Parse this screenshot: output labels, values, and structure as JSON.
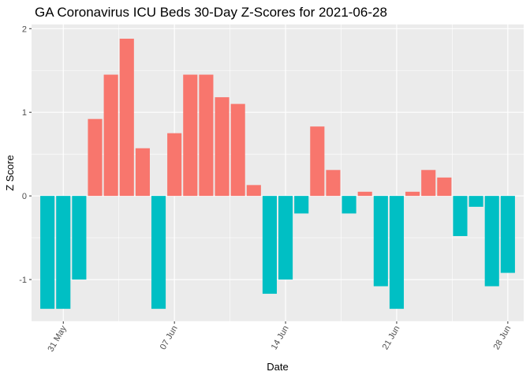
{
  "chart_data": {
    "type": "bar",
    "title": "GA Coronavirus ICU Beds 30-Day Z-Scores for 2021-06-28",
    "xlabel": "Date",
    "ylabel": "Z Score",
    "ylim": [
      -1.5,
      2.05
    ],
    "y_ticks": [
      -1,
      0,
      1,
      2
    ],
    "y_tick_labels": [
      "-1",
      "0",
      "1",
      "2"
    ],
    "x_tick_labels": [
      "31 May",
      "07 Jun",
      "14 Jun",
      "21 Jun",
      "28 Jun"
    ],
    "x_tick_dates": [
      "2021-05-31",
      "2021-06-07",
      "2021-06-14",
      "2021-06-21",
      "2021-06-28"
    ],
    "x_range": [
      "2021-05-29",
      "2021-06-29"
    ],
    "grid": true,
    "legend": "none",
    "colors": {
      "positive": "#F8766D",
      "negative": "#00BFC4",
      "panel": "#EBEBEB",
      "grid": "#FFFFFF"
    },
    "x": [
      "2021-05-30",
      "2021-05-31",
      "2021-06-01",
      "2021-06-02",
      "2021-06-03",
      "2021-06-04",
      "2021-06-05",
      "2021-06-06",
      "2021-06-07",
      "2021-06-08",
      "2021-06-09",
      "2021-06-10",
      "2021-06-11",
      "2021-06-12",
      "2021-06-13",
      "2021-06-14",
      "2021-06-15",
      "2021-06-16",
      "2021-06-17",
      "2021-06-18",
      "2021-06-19",
      "2021-06-20",
      "2021-06-21",
      "2021-06-22",
      "2021-06-23",
      "2021-06-24",
      "2021-06-25",
      "2021-06-26",
      "2021-06-27",
      "2021-06-28"
    ],
    "values": [
      -1.35,
      -1.35,
      -1.0,
      0.92,
      1.45,
      1.88,
      0.57,
      -1.35,
      0.75,
      1.45,
      1.45,
      1.18,
      1.1,
      0.13,
      -1.17,
      -1.0,
      -0.21,
      0.83,
      0.31,
      -0.21,
      0.05,
      -1.08,
      -1.35,
      0.05,
      0.31,
      0.22,
      -0.48,
      -0.13,
      -1.08,
      -0.92
    ]
  }
}
